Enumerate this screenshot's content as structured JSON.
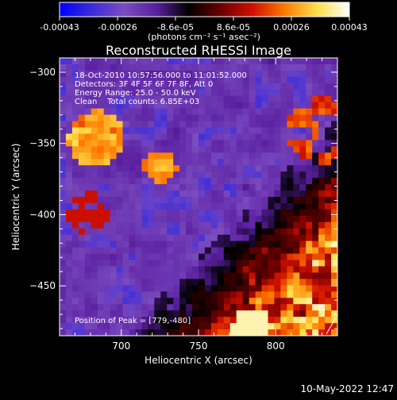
{
  "colorbar": {
    "tick_labels": [
      "-0.00043",
      "-0.00026",
      "-8.6e-05",
      "8.6e-05",
      "0.00026",
      "0.00043"
    ],
    "unit_label": "(photons cm⁻² s⁻¹ asec⁻²)",
    "range": [
      -0.00043,
      0.00043
    ],
    "gradient_stops": [
      "#0000ff",
      "#3c2bd8",
      "#7b4cc0",
      "#5a1fa0",
      "#000000",
      "#6a0000",
      "#d01000",
      "#ff7a00",
      "#ffe04a",
      "#ffffff"
    ]
  },
  "plot": {
    "title": "Reconstructed RHESSI Image",
    "xlabel": "Heliocentric X (arcsec)",
    "ylabel": "Heliocentric Y (arcsec)",
    "x_ticks": [
      "700",
      "750",
      "800"
    ],
    "y_ticks": [
      "-300",
      "-350",
      "-400",
      "-450"
    ],
    "xlim": [
      660,
      840
    ],
    "ylim": [
      -485,
      -290
    ],
    "info_lines": [
      "18-Oct-2010 10:57:56.000 to 11:01:52.000",
      "Detectors: 3F 4F 5F 6F 7F 8F, Att 0",
      "Energy Range: 25.0 - 50.0 keV",
      "Clean    Total counts: 6.85E+03"
    ],
    "peak_label": "Position of Peak = [779,-480]"
  },
  "footer": {
    "timestamp": "10-May-2022 12:47"
  }
}
